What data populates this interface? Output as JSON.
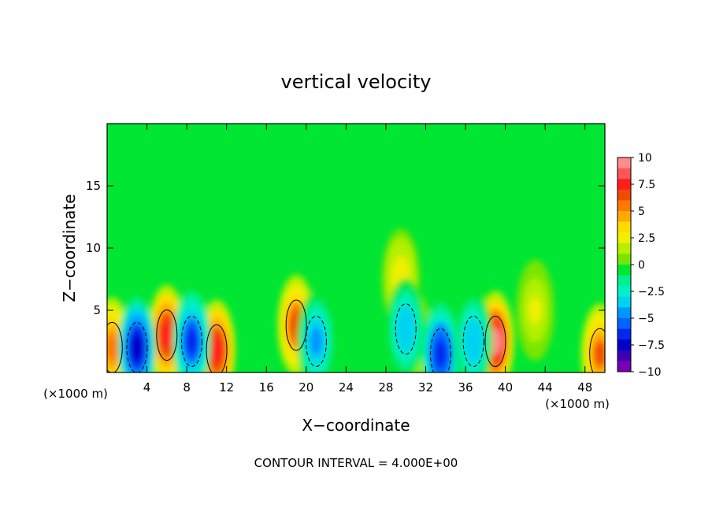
{
  "chart_data": {
    "type": "heatmap",
    "title": "vertical velocity",
    "xlabel": "X−coordinate",
    "ylabel": "Z−coordinate",
    "x_unit_left": "(×1000 m)",
    "x_unit_right": "(×1000 m)",
    "footer": "CONTOUR INTERVAL = 4.000E+00",
    "xlim": [
      0,
      50
    ],
    "ylim": [
      0,
      20
    ],
    "x_ticks": [
      4,
      8,
      12,
      16,
      20,
      24,
      28,
      32,
      36,
      40,
      44,
      48
    ],
    "y_ticks": [
      5,
      10,
      15
    ],
    "colorbar": {
      "range": [
        -10,
        10
      ],
      "tick_values": [
        10,
        7.5,
        5,
        2.5,
        0,
        -2.5,
        -5,
        -7.5,
        -10
      ],
      "tick_labels": [
        "10",
        "7.5",
        "5",
        "2.5",
        "0",
        "−2.5",
        "−5",
        "−7.5",
        "−10"
      ],
      "levels": [
        {
          "value": 9.5,
          "color": "#ff8c8c"
        },
        {
          "value": 8.5,
          "color": "#ff5555"
        },
        {
          "value": 7.5,
          "color": "#ff1e1e"
        },
        {
          "value": 6.5,
          "color": "#f04b00"
        },
        {
          "value": 5.5,
          "color": "#ff7800"
        },
        {
          "value": 4.5,
          "color": "#ffaa00"
        },
        {
          "value": 3.5,
          "color": "#ffdc00"
        },
        {
          "value": 2.5,
          "color": "#f0f000"
        },
        {
          "value": 1.5,
          "color": "#b4f000"
        },
        {
          "value": 0.5,
          "color": "#78e600"
        },
        {
          "value": -0.5,
          "color": "#00e632"
        },
        {
          "value": -1.5,
          "color": "#00f08c"
        },
        {
          "value": -2.5,
          "color": "#00f0c8"
        },
        {
          "value": -3.5,
          "color": "#00d2f0"
        },
        {
          "value": -4.5,
          "color": "#0096ff"
        },
        {
          "value": -5.5,
          "color": "#0064ff"
        },
        {
          "value": -6.5,
          "color": "#0028f0"
        },
        {
          "value": -7.5,
          "color": "#0000c8"
        },
        {
          "value": -8.5,
          "color": "#3c00b4"
        },
        {
          "value": -9.5,
          "color": "#7800b4"
        }
      ]
    },
    "updrafts": [
      {
        "x": 0.5,
        "z": 2.0,
        "w": 5.5
      },
      {
        "x": 6.0,
        "z": 3.0,
        "w": 7.5
      },
      {
        "x": 11.0,
        "z": 1.8,
        "w": 7.5
      },
      {
        "x": 19.0,
        "z": 3.8,
        "w": 6.5
      },
      {
        "x": 29.5,
        "z": 7.5,
        "w": 2.5
      },
      {
        "x": 30.8,
        "z": 2.5,
        "w": 2.0
      },
      {
        "x": 39.0,
        "z": 2.5,
        "w": 9.0
      },
      {
        "x": 43.0,
        "z": 5.0,
        "w": 2.0
      },
      {
        "x": 49.5,
        "z": 1.5,
        "w": 6.0
      }
    ],
    "downdrafts": [
      {
        "x": 3.0,
        "z": 2.0,
        "w": -8.0
      },
      {
        "x": 8.5,
        "z": 2.5,
        "w": -6.5
      },
      {
        "x": 21.0,
        "z": 2.5,
        "w": -5.0
      },
      {
        "x": 30.0,
        "z": 3.5,
        "w": -4.0
      },
      {
        "x": 33.5,
        "z": 1.5,
        "w": -7.0
      },
      {
        "x": 36.8,
        "z": 2.5,
        "w": -4.0
      }
    ]
  }
}
